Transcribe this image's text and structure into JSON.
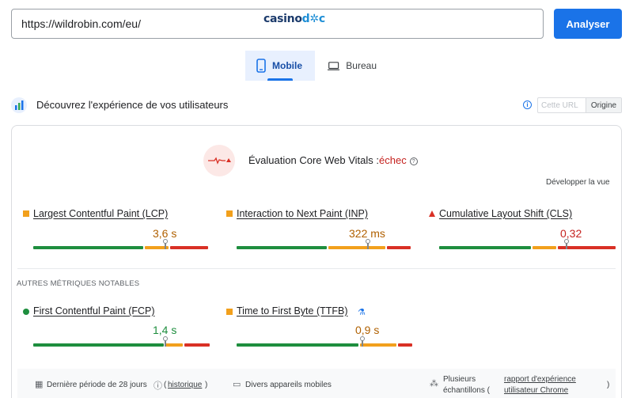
{
  "search": {
    "url_value": "https://wildrobin.com/eu/",
    "submit_label": "Analyser"
  },
  "logo": {
    "part1": "casino",
    "part2": "d",
    "part3": "c"
  },
  "tabs": [
    {
      "label": "Mobile",
      "active": true
    },
    {
      "label": "Bureau",
      "active": false
    }
  ],
  "section": {
    "title": "Découvrez l'expérience de vos utilisateurs",
    "toggle_off": "Cette URL",
    "toggle_on": "Origine"
  },
  "assessment": {
    "prefix": "Évaluation Core Web Vitals :",
    "result": "échec",
    "expand_label": "Développer la vue"
  },
  "metrics": [
    {
      "name": "Largest Contentful Paint (LCP)",
      "value": "3,6 s",
      "status_color": "#b06000",
      "position": 0.74
    },
    {
      "name": "Interaction to Next Paint (INP)",
      "value": "322 ms",
      "status_color": "#b06000",
      "position": 0.75
    },
    {
      "name": "Cumulative Layout Shift (CLS)",
      "value": "0,32",
      "status_color": "#c5221f",
      "position": 0.72
    }
  ],
  "other_label": "AUTRES MÉTRIQUES NOTABLES",
  "other_metrics": [
    {
      "name": "First Contentful Paint (FCP)",
      "value": "1,4 s",
      "status_color": "#1e8e3e",
      "position": 0.75
    },
    {
      "name": "Time to First Byte (TTFB)",
      "value": "0,9 s",
      "status_color": "#b06000",
      "position": 0.71
    }
  ],
  "footer": {
    "period": "Dernière période de 28 jours",
    "history": "historique",
    "devices": "Divers appareils mobiles",
    "samples_line1": "Plusieurs",
    "samples_line2": "échantillons (",
    "report_line1": "rapport d'expérience",
    "report_line2": "utilisateur Chrome",
    "close_paren": ")"
  }
}
